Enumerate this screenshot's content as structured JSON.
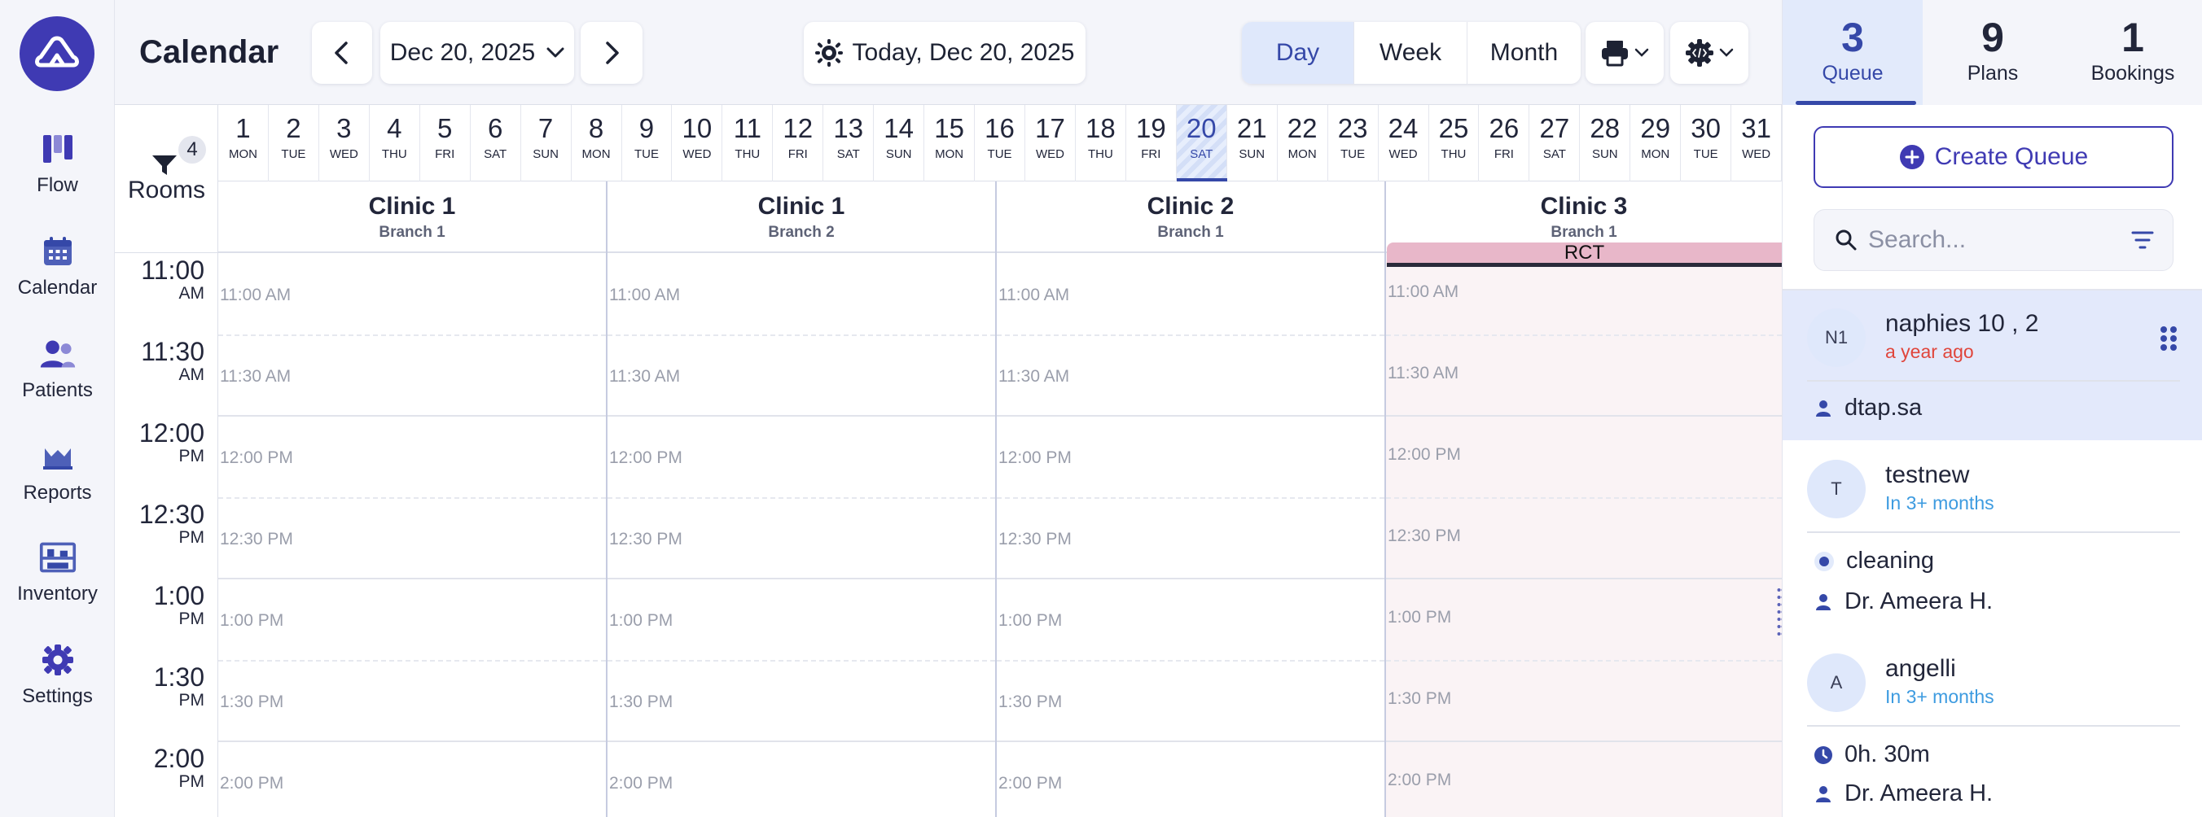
{
  "nav": {
    "items": [
      {
        "label": "Flow",
        "icon": "flow-icon"
      },
      {
        "label": "Calendar",
        "icon": "calendar-icon"
      },
      {
        "label": "Patients",
        "icon": "patients-icon"
      },
      {
        "label": "Reports",
        "icon": "reports-icon"
      },
      {
        "label": "Inventory",
        "icon": "inventory-icon"
      },
      {
        "label": "Settings",
        "icon": "gear-icon"
      }
    ]
  },
  "header": {
    "title": "Calendar",
    "date_picker": "Dec 20, 2025",
    "today_label": "Today, Dec 20, 2025",
    "views": [
      "Day",
      "Week",
      "Month"
    ],
    "active_view": "Day"
  },
  "date_strip": {
    "days": [
      {
        "n": "1",
        "w": "MON"
      },
      {
        "n": "2",
        "w": "TUE"
      },
      {
        "n": "3",
        "w": "WED"
      },
      {
        "n": "4",
        "w": "THU"
      },
      {
        "n": "5",
        "w": "FRI"
      },
      {
        "n": "6",
        "w": "SAT"
      },
      {
        "n": "7",
        "w": "SUN"
      },
      {
        "n": "8",
        "w": "MON"
      },
      {
        "n": "9",
        "w": "TUE"
      },
      {
        "n": "10",
        "w": "WED"
      },
      {
        "n": "11",
        "w": "THU"
      },
      {
        "n": "12",
        "w": "FRI"
      },
      {
        "n": "13",
        "w": "SAT"
      },
      {
        "n": "14",
        "w": "SUN"
      },
      {
        "n": "15",
        "w": "MON"
      },
      {
        "n": "16",
        "w": "TUE"
      },
      {
        "n": "17",
        "w": "WED"
      },
      {
        "n": "18",
        "w": "THU"
      },
      {
        "n": "19",
        "w": "FRI"
      },
      {
        "n": "20",
        "w": "SAT"
      },
      {
        "n": "21",
        "w": "SUN"
      },
      {
        "n": "22",
        "w": "MON"
      },
      {
        "n": "23",
        "w": "TUE"
      },
      {
        "n": "24",
        "w": "WED"
      },
      {
        "n": "25",
        "w": "THU"
      },
      {
        "n": "26",
        "w": "FRI"
      },
      {
        "n": "27",
        "w": "SAT"
      },
      {
        "n": "28",
        "w": "SUN"
      },
      {
        "n": "29",
        "w": "MON"
      },
      {
        "n": "30",
        "w": "TUE"
      },
      {
        "n": "31",
        "w": "WED"
      }
    ],
    "selected": "20"
  },
  "rooms": {
    "label": "Rooms",
    "filter_count": "4",
    "list": [
      {
        "name": "Clinic 1",
        "branch": "Branch 1"
      },
      {
        "name": "Clinic 1",
        "branch": "Branch 2"
      },
      {
        "name": "Clinic 2",
        "branch": "Branch 1"
      },
      {
        "name": "Clinic 3",
        "branch": "Branch 1"
      }
    ],
    "event": {
      "label": "RCT",
      "color": "#e8b7c9"
    }
  },
  "times": [
    {
      "t": "11:00",
      "ap": "AM",
      "slot": "11:00 AM"
    },
    {
      "t": "11:30",
      "ap": "AM",
      "slot": "11:30 AM"
    },
    {
      "t": "12:00",
      "ap": "PM",
      "slot": "12:00 PM"
    },
    {
      "t": "12:30",
      "ap": "PM",
      "slot": "12:30 PM"
    },
    {
      "t": "1:00",
      "ap": "PM",
      "slot": "1:00 PM"
    },
    {
      "t": "1:30",
      "ap": "PM",
      "slot": "1:30 PM"
    },
    {
      "t": "2:00",
      "ap": "PM",
      "slot": "2:00 PM"
    }
  ],
  "right_panel": {
    "tabs": [
      {
        "count": "3",
        "label": "Queue"
      },
      {
        "count": "9",
        "label": "Plans"
      },
      {
        "count": "1",
        "label": "Bookings"
      }
    ],
    "create_label": "Create Queue",
    "search_placeholder": "Search...",
    "queue": [
      {
        "initials": "N1",
        "name": "naphies 10 , 2",
        "time": "a year ago",
        "time_color": "#e0453b",
        "details": [
          {
            "icon": "person-icon",
            "text": "dtap.sa"
          }
        ]
      },
      {
        "initials": "T",
        "name": "testnew",
        "time": "In 3+ months",
        "time_color": "#3d9be0",
        "details": [
          {
            "icon": "dot-icon",
            "text": "cleaning"
          },
          {
            "icon": "person-icon",
            "text": "Dr. Ameera H."
          }
        ]
      },
      {
        "initials": "A",
        "name": "angelli",
        "time": "In 3+ months",
        "time_color": "#3d9be0",
        "details": [
          {
            "icon": "clock-icon",
            "text": "0h. 30m"
          },
          {
            "icon": "person-icon",
            "text": "Dr. Ameera H."
          }
        ]
      }
    ]
  },
  "colors": {
    "accent": "#3f3ab3",
    "active_blue": "#3548a8",
    "past_red": "#e0453b",
    "future_blue": "#3d9be0"
  }
}
